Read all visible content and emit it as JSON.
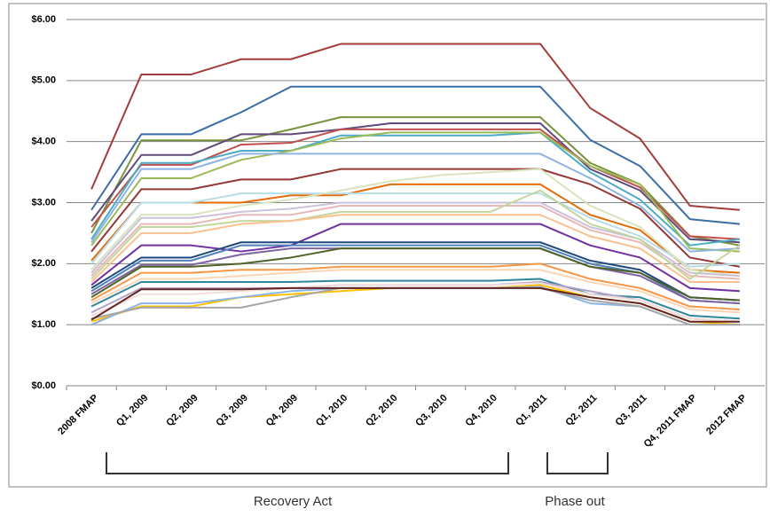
{
  "chart_data": {
    "type": "line",
    "categories": [
      "2008 FMAP",
      "Q1, 2009",
      "Q2, 2009",
      "Q3, 2009",
      "Q4, 2009",
      "Q1, 2010",
      "Q2, 2010",
      "Q3, 2010",
      "Q4, 2010",
      "Q1, 2011",
      "Q2, 2011",
      "Q3, 2011",
      "Q4, 2011 FMAP",
      "2012 FMAP"
    ],
    "ylim": [
      0,
      6
    ],
    "yticks": [
      {
        "value": 0,
        "label": "$0.00"
      },
      {
        "value": 1,
        "label": "$1.00"
      },
      {
        "value": 2,
        "label": "$2.00"
      },
      {
        "value": 3,
        "label": "$3.00"
      },
      {
        "value": 4,
        "label": "$4.00"
      },
      {
        "value": 5,
        "label": "$5.00"
      },
      {
        "value": 6,
        "label": "$6.00"
      }
    ],
    "grid": true,
    "annotations": [
      "Recovery Act",
      "Phase out"
    ],
    "series": [
      {
        "color": "#a33c3a",
        "values": [
          3.22,
          5.1,
          5.1,
          5.35,
          5.35,
          5.6,
          5.6,
          5.6,
          5.6,
          5.6,
          4.55,
          4.05,
          2.95,
          2.88
        ]
      },
      {
        "color": "#3a6ea5",
        "values": [
          2.88,
          4.12,
          4.12,
          4.48,
          4.9,
          4.9,
          4.9,
          4.9,
          4.9,
          4.9,
          4.03,
          3.6,
          2.73,
          2.65
        ]
      },
      {
        "color": "#77933c",
        "values": [
          2.5,
          4.02,
          4.02,
          4.02,
          4.2,
          4.4,
          4.4,
          4.4,
          4.4,
          4.4,
          3.65,
          3.3,
          2.45,
          2.3
        ]
      },
      {
        "color": "#604a7b",
        "values": [
          2.7,
          3.78,
          3.78,
          4.12,
          4.12,
          4.2,
          4.3,
          4.3,
          4.3,
          4.3,
          3.55,
          3.2,
          2.4,
          2.35
        ]
      },
      {
        "color": "#c0504d",
        "values": [
          2.6,
          3.62,
          3.62,
          3.95,
          3.98,
          4.2,
          4.2,
          4.2,
          4.2,
          4.2,
          3.6,
          3.25,
          2.45,
          2.4
        ]
      },
      {
        "color": "#4bacc6",
        "values": [
          2.4,
          3.65,
          3.65,
          3.85,
          3.85,
          4.1,
          4.1,
          4.1,
          4.1,
          4.15,
          3.5,
          3.05,
          2.3,
          2.4
        ]
      },
      {
        "color": "#9bbb59",
        "values": [
          2.3,
          3.4,
          3.4,
          3.7,
          3.85,
          4.05,
          4.15,
          4.15,
          4.15,
          4.15,
          3.6,
          3.3,
          2.25,
          2.2
        ]
      },
      {
        "color": "#8eb4e3",
        "values": [
          2.35,
          3.55,
          3.55,
          3.8,
          3.8,
          3.8,
          3.8,
          3.8,
          3.8,
          3.8,
          3.4,
          2.95,
          2.2,
          2.25
        ]
      },
      {
        "color": "#953735",
        "values": [
          2.2,
          3.22,
          3.22,
          3.38,
          3.38,
          3.55,
          3.55,
          3.55,
          3.55,
          3.55,
          3.3,
          2.9,
          2.1,
          1.95
        ]
      },
      {
        "color": "#e46c0a",
        "values": [
          2.05,
          3.0,
          3.0,
          3.0,
          3.12,
          3.12,
          3.3,
          3.3,
          3.3,
          3.3,
          2.8,
          2.55,
          1.9,
          1.85
        ]
      },
      {
        "color": "#b7dee8",
        "values": [
          2.0,
          3.0,
          3.0,
          3.15,
          3.15,
          3.15,
          3.15,
          3.15,
          3.15,
          3.15,
          2.75,
          2.45,
          1.95,
          2.0
        ]
      },
      {
        "color": "#d7e4bd",
        "values": [
          1.9,
          2.8,
          2.8,
          2.95,
          3.05,
          3.2,
          3.35,
          3.45,
          3.5,
          3.55,
          2.95,
          2.6,
          1.9,
          1.8
        ]
      },
      {
        "color": "#ccc1da",
        "values": [
          1.85,
          2.75,
          2.75,
          2.85,
          2.9,
          3.0,
          3.0,
          3.0,
          3.0,
          3.0,
          2.6,
          2.4,
          1.85,
          1.8
        ]
      },
      {
        "color": "#e6b9b8",
        "values": [
          1.8,
          2.65,
          2.65,
          2.8,
          2.8,
          2.95,
          2.95,
          2.95,
          2.95,
          2.95,
          2.55,
          2.35,
          1.8,
          1.75
        ]
      },
      {
        "color": "#c3d69b",
        "values": [
          1.75,
          2.6,
          2.6,
          2.7,
          2.7,
          2.85,
          2.85,
          2.85,
          2.85,
          3.2,
          2.65,
          2.4,
          1.75,
          2.3
        ]
      },
      {
        "color": "#fac090",
        "values": [
          1.7,
          2.5,
          2.5,
          2.65,
          2.7,
          2.8,
          2.8,
          2.8,
          2.8,
          2.8,
          2.45,
          2.25,
          1.7,
          1.7
        ]
      },
      {
        "color": "#7030a0",
        "values": [
          1.65,
          2.3,
          2.3,
          2.2,
          2.3,
          2.65,
          2.65,
          2.65,
          2.65,
          2.65,
          2.3,
          2.1,
          1.6,
          1.55
        ]
      },
      {
        "color": "#1f497d",
        "values": [
          1.6,
          2.1,
          2.1,
          2.35,
          2.35,
          2.35,
          2.35,
          2.35,
          2.35,
          2.35,
          2.05,
          1.9,
          1.45,
          1.4
        ]
      },
      {
        "color": "#4f81bd",
        "values": [
          1.55,
          2.05,
          2.05,
          2.3,
          2.3,
          2.3,
          2.3,
          2.3,
          2.3,
          2.3,
          2.0,
          1.85,
          1.4,
          1.35
        ]
      },
      {
        "color": "#8064a2",
        "values": [
          1.5,
          1.98,
          1.98,
          2.15,
          2.25,
          2.25,
          2.25,
          2.25,
          2.25,
          2.25,
          1.95,
          1.8,
          1.4,
          1.35
        ]
      },
      {
        "color": "#4f6228",
        "values": [
          1.45,
          1.95,
          1.95,
          2.0,
          2.1,
          2.25,
          2.25,
          2.25,
          2.25,
          2.25,
          1.95,
          1.85,
          1.45,
          1.4
        ]
      },
      {
        "color": "#f79646",
        "values": [
          1.4,
          1.85,
          1.85,
          1.9,
          1.9,
          1.95,
          1.95,
          1.95,
          1.95,
          2.0,
          1.75,
          1.6,
          1.3,
          1.25
        ]
      },
      {
        "color": "#fcd5b5",
        "values": [
          1.35,
          1.75,
          1.75,
          1.8,
          1.85,
          1.9,
          1.9,
          1.9,
          1.9,
          1.9,
          1.7,
          1.55,
          1.25,
          1.2
        ]
      },
      {
        "color": "#31859c",
        "values": [
          1.3,
          1.7,
          1.7,
          1.7,
          1.7,
          1.72,
          1.72,
          1.72,
          1.72,
          1.75,
          1.5,
          1.45,
          1.15,
          1.1
        ]
      },
      {
        "color": "#b3a2c7",
        "values": [
          1.2,
          1.6,
          1.6,
          1.6,
          1.6,
          1.65,
          1.65,
          1.65,
          1.65,
          1.7,
          1.55,
          1.4,
          1.1,
          1.05
        ]
      },
      {
        "color": "#f2dcdb",
        "values": [
          1.15,
          1.5,
          1.5,
          1.55,
          1.6,
          1.65,
          1.65,
          1.65,
          1.65,
          1.68,
          1.5,
          1.4,
          1.1,
          1.05
        ]
      },
      {
        "color": "#ffc000",
        "values": [
          1.05,
          1.3,
          1.3,
          1.45,
          1.5,
          1.55,
          1.6,
          1.6,
          1.6,
          1.65,
          1.45,
          1.35,
          1.05,
          1.0
        ]
      },
      {
        "color": "#8db3e2",
        "values": [
          1.0,
          1.35,
          1.35,
          1.45,
          1.55,
          1.6,
          1.6,
          1.6,
          1.6,
          1.62,
          1.35,
          1.3,
          1.0,
          1.0
        ]
      },
      {
        "color": "#a6a6a6",
        "values": [
          1.1,
          1.28,
          1.28,
          1.28,
          1.45,
          1.6,
          1.6,
          1.6,
          1.6,
          1.6,
          1.4,
          1.3,
          1.0,
          1.0
        ]
      },
      {
        "color": "#632523",
        "values": [
          1.08,
          1.58,
          1.58,
          1.58,
          1.6,
          1.6,
          1.6,
          1.6,
          1.6,
          1.6,
          1.45,
          1.35,
          1.05,
          1.05
        ]
      }
    ]
  }
}
